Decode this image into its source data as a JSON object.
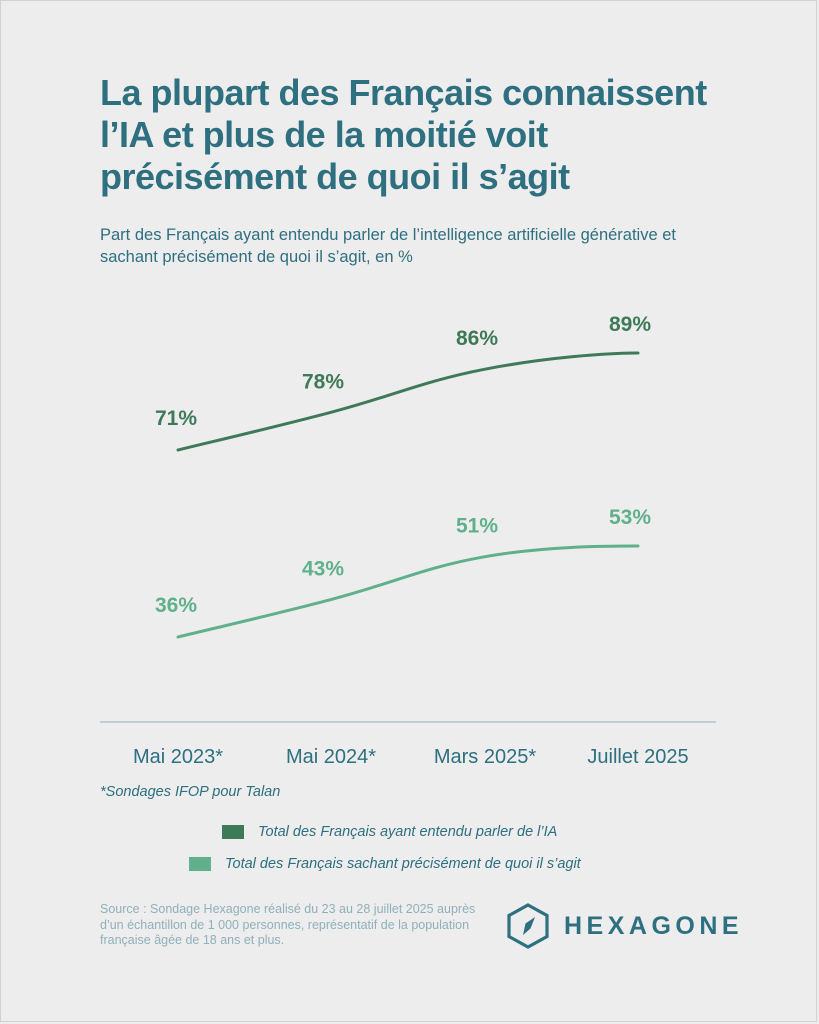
{
  "header": {
    "title": "La plupart des Français connaissent l’IA et plus de la moitié voit précisément de quoi il s’agit",
    "subtitle": "Part des Français ayant entendu parler de l’intelligence artificielle générative et sachant précisément de quoi il s’agit, en %"
  },
  "footnote": "*Sondages IFOP pour Talan",
  "source": "Source : Sondage Hexagone réalisé du 23 au 28 juillet 2025 auprès d’un échantillon de 1 000 personnes, représentatif de la population française âgée de 18 ans et plus.",
  "brand": {
    "name": "HEXAGONE",
    "icon": "hexagon-compass-logo"
  },
  "colors": {
    "dark_green": "#3e7a58",
    "light_green": "#5fb08b",
    "teal": "#2e6f80",
    "axis": "#8fb0bb"
  },
  "chart_data": {
    "type": "line",
    "categories": [
      "Mai 2023*",
      "Mai 2024*",
      "Mars 2025*",
      "Juillet 2025"
    ],
    "series": [
      {
        "name": "Total des Français ayant entendu parler de l’IA",
        "values": [
          71,
          78,
          86,
          89
        ],
        "labels": [
          "71%",
          "78%",
          "86%",
          "89%"
        ],
        "color": "#3e7a58"
      },
      {
        "name": "Total des Français sachant précisément de quoi il s’agit",
        "values": [
          36,
          43,
          51,
          53
        ],
        "labels": [
          "36%",
          "43%",
          "51%",
          "53%"
        ],
        "color": "#5fb08b"
      }
    ],
    "grid": false,
    "legend": "bottom"
  }
}
